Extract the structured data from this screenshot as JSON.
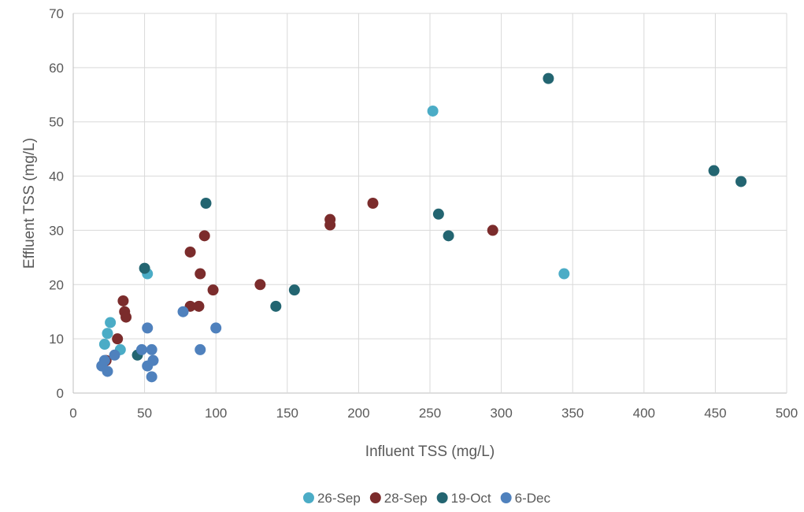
{
  "chart_data": {
    "type": "scatter",
    "title": "",
    "xlabel": "Influent TSS (mg/L)",
    "ylabel": "Effluent TSS (mg/L)",
    "xlim": [
      0,
      500
    ],
    "ylim": [
      0,
      70
    ],
    "xticks": [
      0,
      50,
      100,
      150,
      200,
      250,
      300,
      350,
      400,
      450,
      500
    ],
    "yticks": [
      0,
      10,
      20,
      30,
      40,
      50,
      60,
      70
    ],
    "grid": true,
    "legend_position": "bottom",
    "series": [
      {
        "name": "26-Sep",
        "color": "#4bacc6",
        "points": [
          [
            22,
            9
          ],
          [
            24,
            11
          ],
          [
            26,
            13
          ],
          [
            33,
            8
          ],
          [
            52,
            22
          ],
          [
            252,
            52
          ],
          [
            344,
            22
          ]
        ]
      },
      {
        "name": "28-Sep",
        "color": "#7b2c2c",
        "points": [
          [
            23,
            6
          ],
          [
            31,
            10
          ],
          [
            35,
            17
          ],
          [
            36,
            15
          ],
          [
            37,
            14
          ],
          [
            82,
            26
          ],
          [
            82,
            16
          ],
          [
            88,
            16
          ],
          [
            89,
            22
          ],
          [
            92,
            29
          ],
          [
            98,
            19
          ],
          [
            131,
            20
          ],
          [
            180,
            32
          ],
          [
            180,
            31
          ],
          [
            210,
            35
          ],
          [
            294,
            30
          ]
        ]
      },
      {
        "name": "19-Oct",
        "color": "#236571",
        "points": [
          [
            45,
            7
          ],
          [
            50,
            23
          ],
          [
            93,
            35
          ],
          [
            142,
            16
          ],
          [
            155,
            19
          ],
          [
            256,
            33
          ],
          [
            263,
            29
          ],
          [
            333,
            58
          ],
          [
            449,
            41
          ],
          [
            468,
            39
          ]
        ]
      },
      {
        "name": "6-Dec",
        "color": "#4f81bd",
        "points": [
          [
            20,
            5
          ],
          [
            22,
            6
          ],
          [
            24,
            4
          ],
          [
            29,
            7
          ],
          [
            48,
            8
          ],
          [
            52,
            5
          ],
          [
            52,
            12
          ],
          [
            55,
            8
          ],
          [
            55,
            3
          ],
          [
            56,
            6
          ],
          [
            77,
            15
          ],
          [
            89,
            8
          ],
          [
            100,
            12
          ]
        ]
      }
    ]
  }
}
